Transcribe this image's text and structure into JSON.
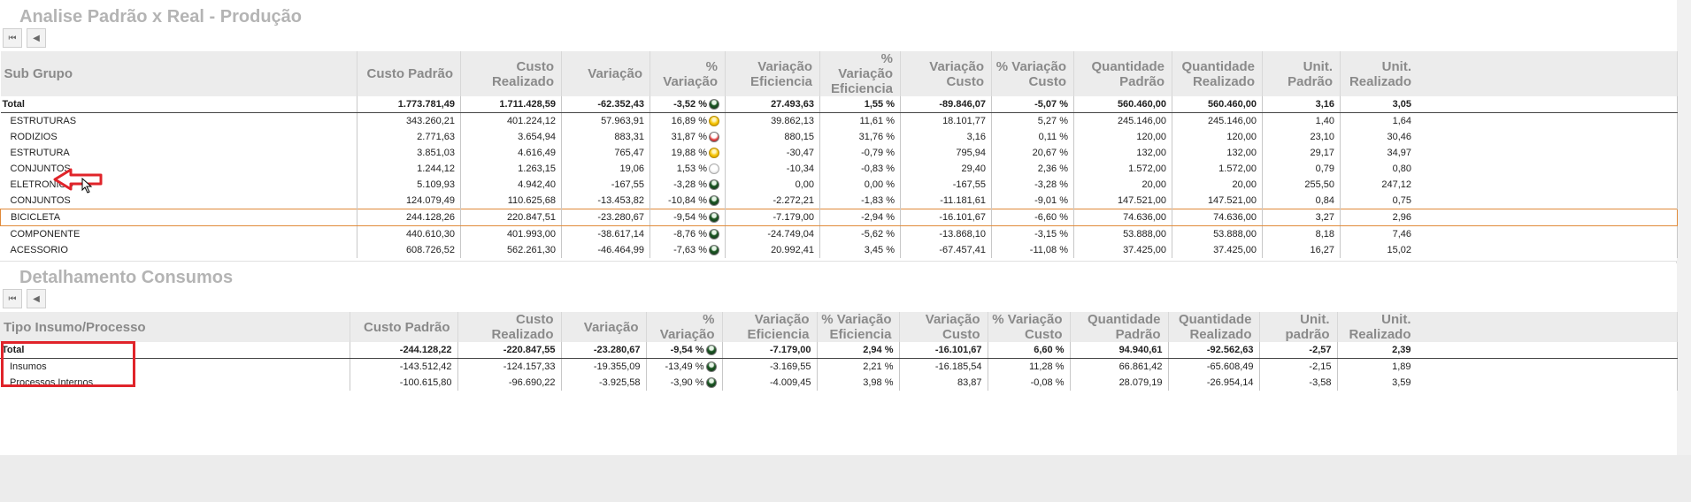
{
  "top_panel": {
    "title": "Analise Padrão x Real - Produção",
    "columns": [
      "Sub Grupo",
      "Custo Padrão",
      "Custo Realizado",
      "Variação",
      "% Variação",
      "Variação Eficiencia",
      "% Variação Eficiencia",
      "Variação Custo",
      "% Variação Custo",
      "Quantidade Padrão",
      "Quantidade Realizado",
      "Unit. Padrão",
      "Unit. Realizado"
    ],
    "rows": [
      {
        "name": "Total",
        "total": true,
        "values": [
          "1.773.781,49",
          "1.711.428,59",
          "-62.352,43",
          "-3,52 %",
          "27.493,63",
          "1,55 %",
          "-89.846,07",
          "-5,07 %",
          "560.460,00",
          "560.460,00",
          "3,16",
          "3,05"
        ],
        "status": "green"
      },
      {
        "name": "ESTRUTURAS",
        "values": [
          "343.260,21",
          "401.224,12",
          "57.963,91",
          "16,89 %",
          "39.862,13",
          "11,61 %",
          "18.101,77",
          "5,27 %",
          "245.146,00",
          "245.146,00",
          "1,40",
          "1,64"
        ],
        "status": "yellow"
      },
      {
        "name": "RODIZIOS",
        "values": [
          "2.771,63",
          "3.654,94",
          "883,31",
          "31,87 %",
          "880,15",
          "31,76 %",
          "3,16",
          "0,11 %",
          "120,00",
          "120,00",
          "23,10",
          "30,46"
        ],
        "status": "red"
      },
      {
        "name": "ESTRUTURA",
        "values": [
          "3.851,03",
          "4.616,49",
          "765,47",
          "19,88 %",
          "-30,47",
          "-0,79 %",
          "795,94",
          "20,67 %",
          "132,00",
          "132,00",
          "29,17",
          "34,97"
        ],
        "status": "yellow"
      },
      {
        "name": "CONJUNTOS",
        "values": [
          "1.244,12",
          "1.263,15",
          "19,06",
          "1,53 %",
          "-10,34",
          "-0,83 %",
          "29,40",
          "2,36 %",
          "1.572,00",
          "1.572,00",
          "0,79",
          "0,80"
        ],
        "status": "grey"
      },
      {
        "name": "ELETRONICO",
        "values": [
          "5.109,93",
          "4.942,40",
          "-167,55",
          "-3,28 %",
          "0,00",
          "0,00 %",
          "-167,55",
          "-3,28 %",
          "20,00",
          "20,00",
          "255,50",
          "247,12"
        ],
        "status": "green"
      },
      {
        "name": "CONJUNTOS",
        "values": [
          "124.079,49",
          "110.625,68",
          "-13.453,82",
          "-10,84 %",
          "-2.272,21",
          "-1,83 %",
          "-11.181,61",
          "-9,01 %",
          "147.521,00",
          "147.521,00",
          "0,84",
          "0,75"
        ],
        "status": "green"
      },
      {
        "name": "BICICLETA",
        "selected": true,
        "values": [
          "244.128,26",
          "220.847,51",
          "-23.280,67",
          "-9,54 %",
          "-7.179,00",
          "-2,94 %",
          "-16.101,67",
          "-6,60 %",
          "74.636,00",
          "74.636,00",
          "3,27",
          "2,96"
        ],
        "status": "green"
      },
      {
        "name": "COMPONENTE",
        "values": [
          "440.610,30",
          "401.993,00",
          "-38.617,14",
          "-8,76 %",
          "-24.749,04",
          "-5,62 %",
          "-13.868,10",
          "-3,15 %",
          "53.888,00",
          "53.888,00",
          "8,18",
          "7,46"
        ],
        "status": "green"
      },
      {
        "name": "ACESSORIO",
        "values": [
          "608.726,52",
          "562.261,30",
          "-46.464,99",
          "-7,63 %",
          "20.992,41",
          "3,45 %",
          "-67.457,41",
          "-11,08 %",
          "37.425,00",
          "37.425,00",
          "16,27",
          "15,02"
        ],
        "status": "green"
      }
    ]
  },
  "bottom_panel": {
    "title": "Detalhamento Consumos",
    "columns": [
      "Tipo Insumo/Processo",
      "Custo Padrão",
      "Custo Realizado",
      "Variação",
      "% Variação",
      "Variação Eficiencia",
      "% Variação Eficiencia",
      "Variação Custo",
      "% Variação Custo",
      "Quantidade Padrão",
      "Quantidade Realizado",
      "Unit. padrão",
      "Unit. Realizado"
    ],
    "rows": [
      {
        "name": "Total",
        "total": true,
        "values": [
          "-244.128,22",
          "-220.847,55",
          "-23.280,67",
          "-9,54 %",
          "-7.179,00",
          "2,94 %",
          "-16.101,67",
          "6,60 %",
          "94.940,61",
          "-92.562,63",
          "-2,57",
          "2,39"
        ],
        "status": "green"
      },
      {
        "name": "Insumos",
        "values": [
          "-143.512,42",
          "-124.157,33",
          "-19.355,09",
          "-13,49 %",
          "-3.169,55",
          "2,21 %",
          "-16.185,54",
          "11,28 %",
          "66.861,42",
          "-65.608,49",
          "-2,15",
          "1,89"
        ],
        "status": "green"
      },
      {
        "name": "Processos Internos",
        "values": [
          "-100.615,80",
          "-96.690,22",
          "-3.925,58",
          "-3,90 %",
          "-4.009,45",
          "3,98 %",
          "83,87",
          "-0,08 %",
          "28.079,19",
          "-26.954,14",
          "-3,58",
          "3,59"
        ],
        "status": "green"
      }
    ]
  },
  "colors": {
    "annotation_red": "#e0242a",
    "selection_orange": "#e08a3a",
    "title_grey": "#b4b4b4"
  }
}
